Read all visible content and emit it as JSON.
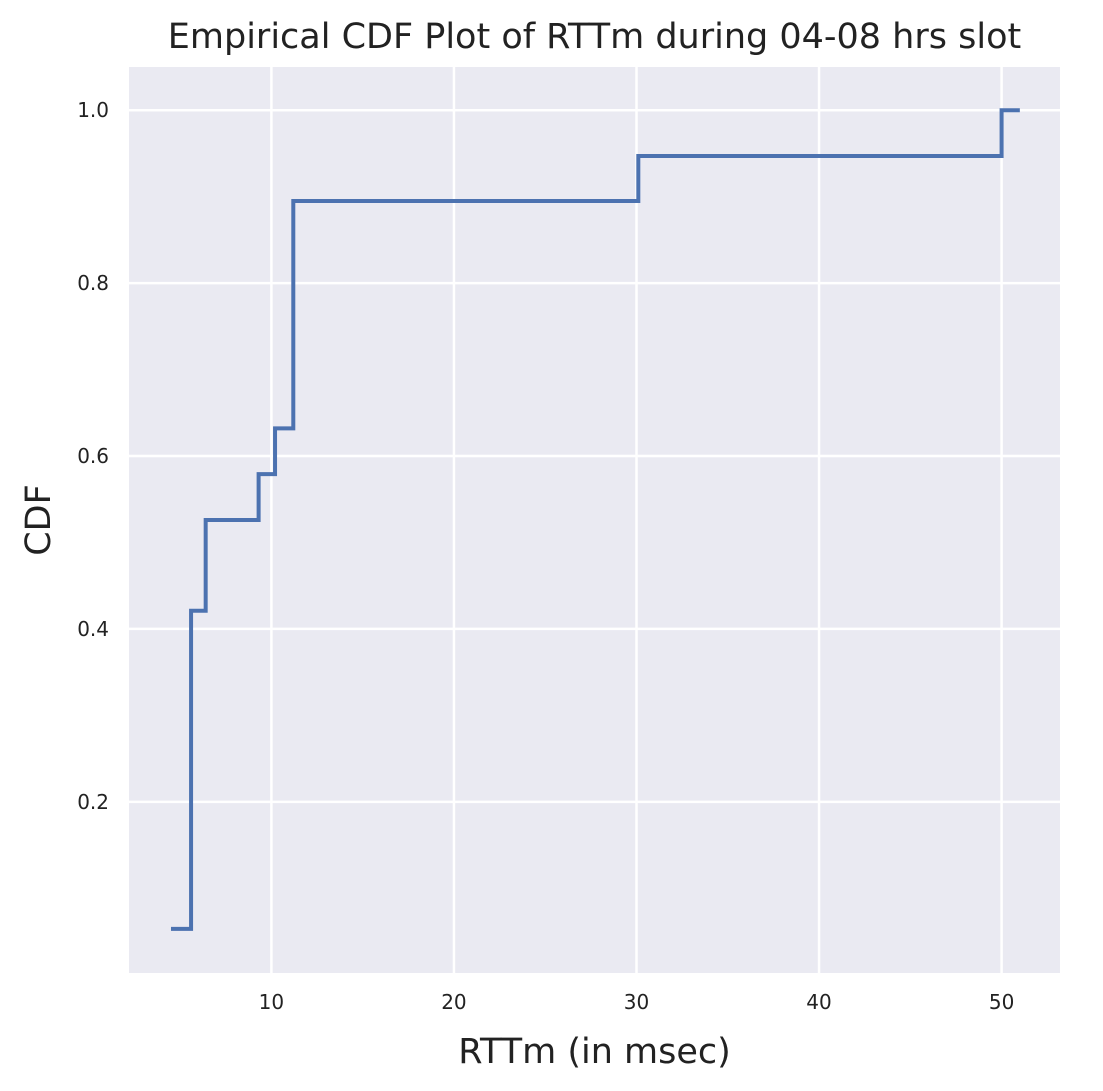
{
  "chart_data": {
    "type": "line",
    "title": "Empirical CDF Plot of RTTm during 04-08 hrs slot",
    "xlabel": "RTTm (in msec)",
    "ylabel": "CDF",
    "xlim": [
      2.2,
      53.2
    ],
    "ylim": [
      0.002,
      1.05
    ],
    "xticks": [
      10,
      20,
      30,
      40,
      50
    ],
    "yticks": [
      0.2,
      0.4,
      0.6,
      0.8,
      1.0
    ],
    "xtick_labels": [
      "10",
      "20",
      "30",
      "40",
      "50"
    ],
    "ytick_labels": [
      "0.2",
      "0.4",
      "0.6",
      "0.8",
      "1.0"
    ],
    "grid": true,
    "step_style": "post",
    "series": [
      {
        "color": "#4c72b0",
        "x": [
          4.5,
          5.6,
          6.4,
          9.3,
          10.2,
          11.2,
          30.1,
          50.0,
          51.0
        ],
        "y": [
          0.053,
          0.421,
          0.526,
          0.579,
          0.632,
          0.895,
          0.947,
          1.0,
          1.0
        ]
      }
    ]
  }
}
